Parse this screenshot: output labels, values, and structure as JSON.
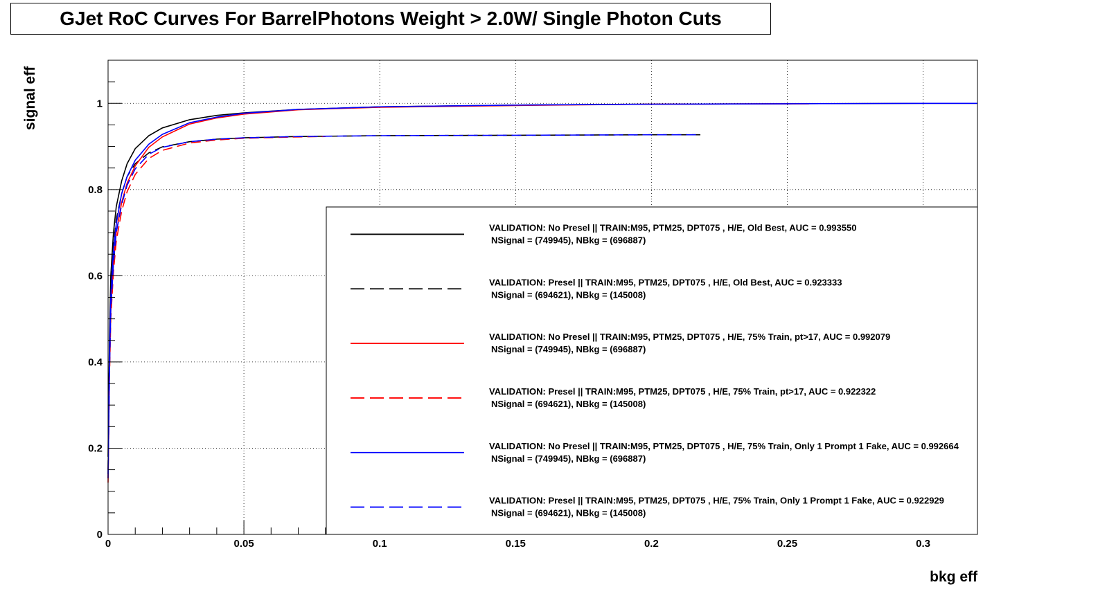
{
  "chart_data": {
    "type": "line",
    "title": "GJet RoC Curves For BarrelPhotons Weight > 2.0W/ Single Photon Cuts",
    "xlabel": "bkg eff",
    "ylabel": "signal eff",
    "xlim": [
      0,
      0.32
    ],
    "ylim": [
      0,
      1.1
    ],
    "xticks": [
      0,
      0.05,
      0.1,
      0.15,
      0.2,
      0.25,
      0.3
    ],
    "xtick_labels": [
      "0",
      "0.05",
      "0.1",
      "0.15",
      "0.2",
      "0.25",
      "0.3"
    ],
    "yticks": [
      0,
      0.2,
      0.4,
      0.6,
      0.8,
      1
    ],
    "ytick_labels": [
      "0",
      "0.2",
      "0.4",
      "0.6",
      "0.8",
      "1"
    ],
    "grid": true,
    "legend_position": "lower-right",
    "series": [
      {
        "name": "VALIDATION: No Presel || TRAIN:M95, PTM25, DPT075 , H/E, Old Best, AUC = 0.993550",
        "name_line2": "NSignal = (749945), NBkg = (696887)",
        "color": "#000000",
        "dashed": false,
        "x": [
          0,
          0.0005,
          0.001,
          0.002,
          0.003,
          0.005,
          0.007,
          0.01,
          0.015,
          0.02,
          0.03,
          0.04,
          0.05,
          0.07,
          0.1,
          0.15,
          0.2,
          0.25,
          0.3,
          0.32
        ],
        "y": [
          0.18,
          0.45,
          0.6,
          0.7,
          0.76,
          0.82,
          0.86,
          0.895,
          0.925,
          0.943,
          0.962,
          0.972,
          0.978,
          0.986,
          0.992,
          0.996,
          0.998,
          0.999,
          1.0,
          1.0
        ]
      },
      {
        "name": "VALIDATION: Presel || TRAIN:M95, PTM25, DPT075 , H/E, Old Best, AUC = 0.923333",
        "name_line2": "NSignal = (694621), NBkg = (145008)",
        "color": "#000000",
        "dashed": true,
        "x": [
          0,
          0.0005,
          0.001,
          0.002,
          0.003,
          0.005,
          0.007,
          0.01,
          0.015,
          0.02,
          0.03,
          0.04,
          0.05,
          0.07,
          0.1,
          0.15,
          0.2,
          0.218
        ],
        "y": [
          0.15,
          0.42,
          0.57,
          0.67,
          0.73,
          0.79,
          0.83,
          0.86,
          0.885,
          0.899,
          0.911,
          0.917,
          0.92,
          0.923,
          0.925,
          0.926,
          0.927,
          0.927
        ]
      },
      {
        "name": "VALIDATION: No Presel || TRAIN:M95, PTM25, DPT075 , H/E, 75% Train, pt>17, AUC = 0.992079",
        "name_line2": "NSignal = (749945), NBkg = (696887)",
        "color": "#ff0000",
        "dashed": false,
        "x": [
          0,
          0.0005,
          0.001,
          0.002,
          0.003,
          0.005,
          0.007,
          0.01,
          0.015,
          0.02,
          0.03,
          0.04,
          0.05,
          0.07,
          0.1,
          0.15,
          0.2,
          0.25,
          0.258
        ],
        "y": [
          0.13,
          0.38,
          0.52,
          0.63,
          0.7,
          0.77,
          0.815,
          0.855,
          0.898,
          0.922,
          0.952,
          0.966,
          0.975,
          0.985,
          0.991,
          0.995,
          0.998,
          0.999,
          0.999
        ]
      },
      {
        "name": "VALIDATION: Presel || TRAIN:M95, PTM25, DPT075 , H/E, 75% Train, pt>17, AUC = 0.922322",
        "name_line2": "NSignal = (694621), NBkg = (145008)",
        "color": "#ff0000",
        "dashed": true,
        "x": [
          0,
          0.0005,
          0.001,
          0.002,
          0.003,
          0.005,
          0.007,
          0.01,
          0.015,
          0.02,
          0.03,
          0.04,
          0.05,
          0.07,
          0.08
        ],
        "y": [
          0.12,
          0.36,
          0.5,
          0.61,
          0.68,
          0.75,
          0.795,
          0.835,
          0.872,
          0.891,
          0.908,
          0.915,
          0.919,
          0.922,
          0.923
        ]
      },
      {
        "name": "VALIDATION: No Presel || TRAIN:M95, PTM25, DPT075 , H/E, 75% Train, Only 1 Prompt 1 Fake, AUC = 0.992664",
        "name_line2": "NSignal = (749945), NBkg = (696887)",
        "color": "#0000ff",
        "dashed": false,
        "x": [
          0,
          0.0005,
          0.001,
          0.002,
          0.003,
          0.005,
          0.007,
          0.01,
          0.015,
          0.02,
          0.03,
          0.04,
          0.05,
          0.07,
          0.1,
          0.15,
          0.2,
          0.25,
          0.3,
          0.32
        ],
        "y": [
          0.14,
          0.4,
          0.55,
          0.66,
          0.72,
          0.79,
          0.83,
          0.868,
          0.905,
          0.928,
          0.955,
          0.968,
          0.977,
          0.986,
          0.992,
          0.996,
          0.998,
          0.999,
          1.0,
          1.0
        ]
      },
      {
        "name": "VALIDATION: Presel || TRAIN:M95, PTM25, DPT075 , H/E, 75% Train, Only 1 Prompt 1 Fake, AUC = 0.922929",
        "name_line2": "NSignal = (694621), NBkg = (145008)",
        "color": "#0000ff",
        "dashed": true,
        "x": [
          0,
          0.0005,
          0.001,
          0.002,
          0.003,
          0.005,
          0.007,
          0.01,
          0.015,
          0.02,
          0.03,
          0.04,
          0.05,
          0.07,
          0.1,
          0.15,
          0.2,
          0.218
        ],
        "y": [
          0.13,
          0.37,
          0.52,
          0.63,
          0.7,
          0.765,
          0.81,
          0.848,
          0.882,
          0.898,
          0.911,
          0.917,
          0.92,
          0.923,
          0.925,
          0.926,
          0.927,
          0.927
        ]
      }
    ]
  }
}
